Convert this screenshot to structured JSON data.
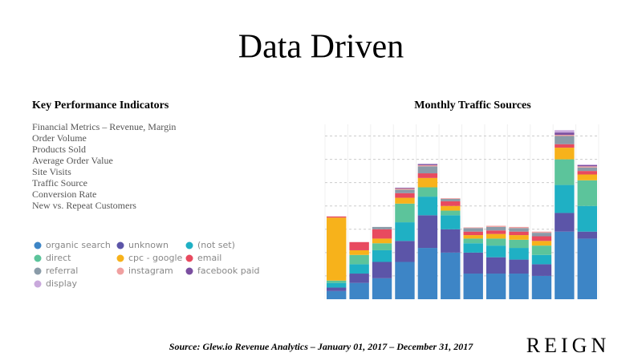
{
  "slide": {
    "title": "Data Driven",
    "kpi_heading": "Key Performance Indicators",
    "kpi_items": [
      "Financial Metrics – Revenue, Margin",
      "Order Volume",
      "Products Sold",
      "Average Order Value",
      "Site Visits",
      "Traffic Source",
      "Conversion Rate",
      "New vs. Repeat Customers"
    ],
    "source": "Source: Glew.io Revenue Analytics – January 01, 2017 – December 31, 2017",
    "logo": "REIGN"
  },
  "chart_data": {
    "type": "stacked-bar",
    "title": "Monthly Traffic Sources",
    "categories": [
      null,
      null,
      null,
      null,
      null,
      null,
      null,
      null,
      null,
      null,
      null,
      null
    ],
    "ylim": [
      0,
      75
    ],
    "yticks": [
      10,
      20,
      30,
      40,
      50,
      60,
      70
    ],
    "grid": true,
    "series": [
      {
        "name": "organic search",
        "color": "#3d85c6",
        "values": [
          3.5,
          7,
          9,
          16,
          22,
          20,
          11,
          11,
          11,
          10,
          29,
          26
        ]
      },
      {
        "name": "unknown",
        "color": "#5c55a8",
        "values": [
          1.5,
          4,
          7,
          9,
          14,
          10,
          9,
          7,
          6,
          5,
          8,
          3
        ]
      },
      {
        "name": "(not set)",
        "color": "#1fb0c4",
        "values": [
          2,
          4,
          5,
          8,
          8,
          6,
          4,
          5,
          5,
          4,
          12,
          11
        ]
      },
      {
        "name": "direct",
        "color": "#5cc49b",
        "values": [
          1,
          4,
          3,
          8,
          4,
          2,
          2,
          3,
          3.5,
          4,
          11,
          11
        ]
      },
      {
        "name": "cpc - google",
        "color": "#f7b21b",
        "values": [
          27,
          2,
          2,
          2.5,
          4,
          2,
          1.5,
          2,
          2,
          2,
          5,
          2.5
        ]
      },
      {
        "name": "email",
        "color": "#e84a5f",
        "values": [
          0.5,
          3.5,
          4,
          2,
          2,
          2,
          1.5,
          1.5,
          1.5,
          2,
          1.5,
          1.5
        ]
      },
      {
        "name": "referral",
        "color": "#8a9ba8",
        "values": [
          0,
          0,
          1,
          1.5,
          3,
          1,
          1.5,
          1.5,
          1.5,
          1.5,
          3.5,
          1.5
        ]
      },
      {
        "name": "instagram",
        "color": "#f0a0a0",
        "values": [
          0,
          0,
          0,
          0.5,
          0.5,
          0.3,
          0.3,
          0.5,
          0.5,
          0.5,
          0.5,
          0.5
        ]
      },
      {
        "name": "facebook paid",
        "color": "#7b4fa0",
        "values": [
          0,
          0,
          0,
          0.3,
          0.5,
          0,
          0,
          0,
          0,
          0,
          1,
          0.5
        ]
      },
      {
        "name": "display",
        "color": "#c9a9dc",
        "values": [
          0,
          0,
          0,
          0,
          0,
          0,
          0,
          0,
          0,
          0,
          1,
          0.3
        ]
      }
    ]
  }
}
